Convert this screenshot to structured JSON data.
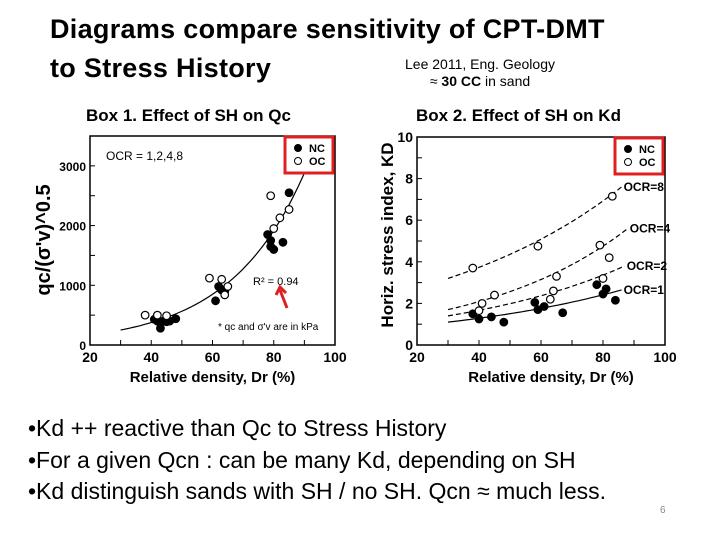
{
  "title": {
    "line1": "Diagrams compare sensitivity of CPT-DMT",
    "line2": "to Stress History"
  },
  "reference": {
    "line1": "Lee 2011, Eng. Geology",
    "line2_prefix": "≈ ",
    "line2_bold": "30 CC",
    "line2_suffix": " in sand"
  },
  "boxes": {
    "box1": "Box 1. Effect of SH on  Qc",
    "box2": "Box 2. Effect of SH on Kd"
  },
  "bullets": [
    "•Kd ++ reactive than Qc to Stress History",
    "•For a given Qcn : can be many Kd, depending on SH",
    "•Kd distinguish sands with SH / no SH. Qcn ≈ much less."
  ],
  "page_number": "6",
  "colors": {
    "highlight": "#e02020",
    "arrow": "#e02020"
  },
  "chart_data": [
    {
      "type": "scatter",
      "xlabel": "Relative density, Dr (%)",
      "ylabel": "qc/(σ'v)^0.5",
      "xlim": [
        20,
        100
      ],
      "ylim": [
        0,
        3500
      ],
      "xticks": [
        "20",
        "40",
        "60",
        "80",
        "100"
      ],
      "yticks": [
        "0",
        "1000",
        "2000",
        "3000"
      ],
      "annotation": "OCR = 1,2,4,8",
      "r2_label": "R² = 0.94",
      "note": "* qc and σ'v are in kPa",
      "legend": {
        "position": "top-right",
        "entries": [
          "NC",
          "OC"
        ]
      },
      "series": [
        {
          "name": "NC",
          "marker": "filled",
          "points": [
            [
              41,
              430
            ],
            [
              42,
              400
            ],
            [
              43,
              280
            ],
            [
              44,
              400
            ],
            [
              45,
              390
            ],
            [
              46,
              400
            ],
            [
              48,
              440
            ],
            [
              61,
              740
            ],
            [
              62,
              980
            ],
            [
              63,
              920
            ],
            [
              64,
              900
            ],
            [
              78,
              1850
            ],
            [
              79,
              1750
            ],
            [
              79,
              1650
            ],
            [
              80,
              1600
            ],
            [
              83,
              1720
            ],
            [
              85,
              2550
            ]
          ]
        },
        {
          "name": "OC",
          "marker": "open",
          "points": [
            [
              38,
              500
            ],
            [
              42,
              500
            ],
            [
              45,
              490
            ],
            [
              59,
              1120
            ],
            [
              63,
              1100
            ],
            [
              64,
              840
            ],
            [
              65,
              980
            ],
            [
              79,
              2500
            ],
            [
              80,
              1950
            ],
            [
              82,
              2130
            ],
            [
              85,
              2270
            ]
          ]
        }
      ],
      "fit": {
        "from": [
          30,
          250
        ],
        "to": [
          91,
          3000
        ],
        "style": "solid"
      }
    },
    {
      "type": "scatter",
      "xlabel": "Relative density, Dr (%)",
      "ylabel": "Horiz. stress index, KD",
      "xlim": [
        20,
        100
      ],
      "ylim": [
        0,
        10
      ],
      "xticks": [
        "20",
        "40",
        "60",
        "80",
        "100"
      ],
      "yticks": [
        "0",
        "2",
        "4",
        "6",
        "8",
        "10"
      ],
      "legend": {
        "position": "top-right",
        "entries": [
          "NC",
          "OC"
        ]
      },
      "series": [
        {
          "name": "NC",
          "marker": "filled",
          "points": [
            [
              38,
              1.5
            ],
            [
              40,
              1.25
            ],
            [
              44,
              1.35
            ],
            [
              48,
              1.1
            ],
            [
              58,
              2.05
            ],
            [
              59,
              1.7
            ],
            [
              61,
              1.85
            ],
            [
              67,
              1.55
            ],
            [
              78,
              2.9
            ],
            [
              80,
              2.45
            ],
            [
              81,
              2.7
            ],
            [
              84,
              2.15
            ]
          ]
        },
        {
          "name": "OC",
          "marker": "open",
          "points": [
            [
              38,
              3.7
            ],
            [
              40,
              1.65
            ],
            [
              41,
              2.0
            ],
            [
              45,
              2.4
            ],
            [
              59,
              4.75
            ],
            [
              63,
              2.2
            ],
            [
              64,
              2.6
            ],
            [
              65,
              3.3
            ],
            [
              79,
              4.8
            ],
            [
              80,
              3.2
            ],
            [
              82,
              4.2
            ],
            [
              83,
              7.15
            ]
          ]
        }
      ],
      "curves": [
        {
          "label": "OCR=1",
          "from": [
            30,
            1.1
          ],
          "to": [
            86,
            2.65
          ],
          "style": "solid"
        },
        {
          "label": "OCR=2",
          "from": [
            30,
            1.4
          ],
          "to": [
            87,
            3.8
          ],
          "style": "dashed"
        },
        {
          "label": "OCR=4",
          "from": [
            30,
            1.7
          ],
          "to": [
            88,
            5.6
          ],
          "style": "dashed"
        },
        {
          "label": "OCR=8",
          "from": [
            30,
            3.2
          ],
          "to": [
            86,
            7.6
          ],
          "style": "dashed"
        }
      ]
    }
  ]
}
